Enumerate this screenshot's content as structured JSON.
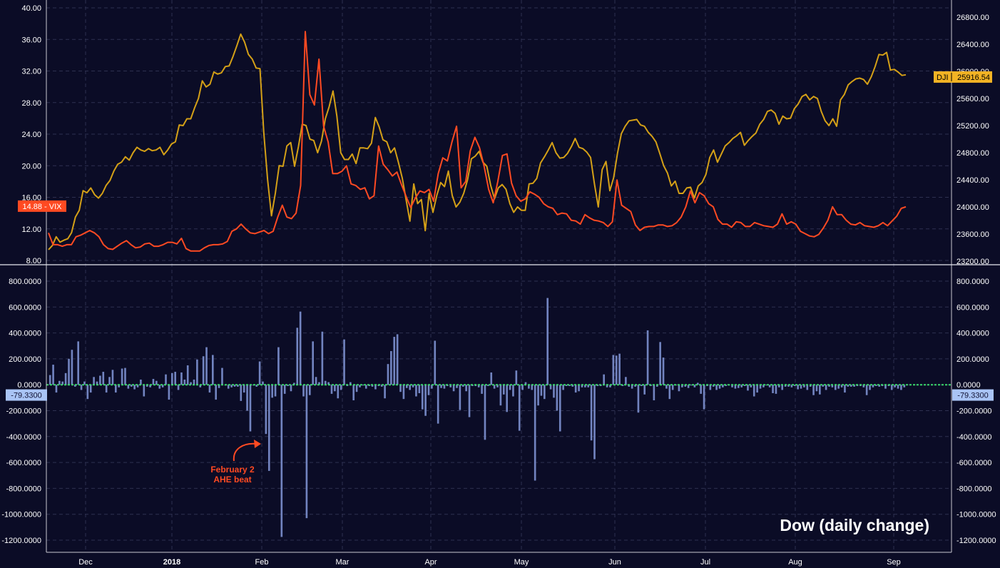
{
  "chart_data": [
    {
      "type": "line",
      "panel": "top",
      "title": "",
      "left_axis": {
        "ylim": [
          8,
          40
        ],
        "ticks": [
          "8.00",
          "12.00",
          "16.00",
          "20.00",
          "24.00",
          "28.00",
          "32.00",
          "36.00",
          "40.00"
        ]
      },
      "right_axis": {
        "ylim": [
          23150,
          26900
        ],
        "ticks": [
          "23200.00",
          "23600.00",
          "24000.00",
          "24400.00",
          "24800.00",
          "25200.00",
          "25600.00",
          "26000.00",
          "26400.00",
          "26800.00"
        ]
      },
      "x_labels": [
        "Dec",
        "2018",
        "Feb",
        "Mar",
        "Apr",
        "May",
        "Jun",
        "Jul",
        "Aug",
        "Sep"
      ],
      "grid": true,
      "series": [
        {
          "name": "VIX",
          "axis": "left",
          "color": "#ff4a22",
          "last_value": "14.88",
          "values": [
            11.5,
            10.0,
            10.0,
            9.8,
            10.0,
            10.0,
            11.0,
            11.2,
            11.5,
            11.8,
            11.5,
            11.0,
            10.0,
            9.5,
            9.4,
            9.8,
            10.2,
            10.5,
            10.0,
            9.6,
            9.7,
            10.1,
            10.2,
            9.8,
            9.8,
            10.0,
            10.3,
            10.3,
            10.1,
            10.8,
            9.5,
            9.2,
            9.2,
            9.2,
            9.6,
            9.9,
            10.0,
            10.0,
            10.1,
            10.4,
            11.7,
            12.0,
            12.6,
            12.0,
            11.5,
            11.4,
            11.6,
            11.8,
            11.4,
            11.7,
            13.5,
            15.0,
            13.5,
            13.3,
            14.0,
            17.5,
            37.0,
            29.0,
            27.7,
            33.5,
            25.0,
            23.0,
            19.0,
            19.0,
            19.3,
            20.0,
            17.7,
            17.5,
            17.0,
            17.2,
            15.8,
            16.2,
            22.5,
            20.2,
            19.5,
            18.7,
            19.2,
            17.6,
            16.1,
            14.7,
            15.9,
            16.8,
            16.6,
            17.0,
            15.5,
            19.0,
            21.0,
            20.6,
            23.0,
            25.0,
            17.2,
            18.0,
            21.9,
            23.6,
            22.3,
            20.0,
            17.0,
            15.3,
            18.0,
            21.3,
            21.5,
            17.8,
            16.2,
            15.5,
            15.8,
            16.7,
            16.4,
            16.0,
            15.2,
            14.8,
            14.6,
            13.8,
            14.0,
            13.9,
            13.1,
            13.0,
            12.6,
            13.8,
            13.4,
            13.1,
            13.0,
            12.8,
            12.3,
            12.9,
            18.2,
            15.0,
            14.6,
            14.2,
            12.5,
            11.8,
            12.2,
            12.3,
            12.3,
            12.5,
            12.5,
            12.3,
            12.4,
            12.8,
            13.5,
            14.8,
            16.8,
            15.3,
            16.6,
            16.2,
            15.2,
            14.8,
            13.2,
            12.6,
            12.6,
            12.2,
            12.9,
            12.8,
            12.3,
            12.3,
            12.8,
            12.6,
            12.4,
            12.3,
            12.2,
            12.6,
            13.9,
            12.6,
            12.9,
            12.6,
            11.7,
            11.4,
            11.1,
            11.0,
            11.3,
            12.1,
            13.1,
            14.8,
            13.8,
            13.8,
            13.1,
            12.6,
            12.5,
            12.8,
            12.4,
            12.3,
            12.2,
            12.4,
            12.8,
            12.4,
            13.0,
            13.6,
            14.6,
            14.8
          ]
        },
        {
          "name": "DJI",
          "axis": "right",
          "color": "#d4a017",
          "last_value": "25916.54",
          "values": [
            23370,
            23430,
            23560,
            23480,
            23510,
            23530,
            23620,
            23850,
            23950,
            24240,
            24210,
            24280,
            24180,
            24130,
            24200,
            24320,
            24390,
            24530,
            24630,
            24660,
            24740,
            24690,
            24800,
            24880,
            24840,
            24820,
            24860,
            24830,
            24840,
            24880,
            24770,
            24840,
            24930,
            24960,
            25210,
            25200,
            25300,
            25300,
            25460,
            25600,
            25860,
            25770,
            25810,
            25990,
            25960,
            25980,
            26070,
            26080,
            26220,
            26380,
            26550,
            26430,
            26250,
            26180,
            26050,
            26040,
            25100,
            24400,
            23870,
            24200,
            24610,
            24600,
            24900,
            24950,
            24600,
            24890,
            25220,
            25200,
            25000,
            24980,
            24800,
            24970,
            25300,
            25480,
            25710,
            25340,
            24800,
            24700,
            24700,
            24780,
            24640,
            24870,
            24870,
            24860,
            24940,
            25320,
            25180,
            24990,
            24960,
            24800,
            24870,
            24660,
            24430,
            24110,
            23790,
            24340,
            24050,
            24110,
            23650,
            24200,
            23920,
            24170,
            24360,
            24300,
            24530,
            24170,
            24000,
            24070,
            24200,
            24400,
            24710,
            24750,
            24820,
            24660,
            24600,
            24320,
            24120,
            24280,
            24330,
            24260,
            24050,
            23920,
            24000,
            23950,
            23950,
            24340,
            24350,
            24420,
            24650,
            24740,
            24840,
            24950,
            24800,
            24720,
            24730,
            24790,
            24890,
            25010,
            24880,
            24860,
            24810,
            24730,
            24340,
            24000,
            24550,
            24670,
            24240,
            24430,
            24790,
            25080,
            25190,
            25270,
            25280,
            25290,
            25210,
            25190,
            25100,
            25040,
            24960,
            24790,
            24610,
            24500,
            24310,
            24380,
            24200,
            24200,
            24280,
            24290,
            24130,
            24310,
            24360,
            24480,
            24730,
            24840,
            24660,
            24780,
            24900,
            24950,
            25010,
            25050,
            25100,
            24910,
            24980,
            25040,
            25090,
            25220,
            25290,
            25410,
            25430,
            25380,
            25220,
            25340,
            25300,
            25310,
            25450,
            25520,
            25630,
            25660,
            25580,
            25630,
            25600,
            25410,
            25270,
            25200,
            25300,
            25190,
            25580,
            25660,
            25800,
            25850,
            25890,
            25900,
            25880,
            25810,
            25920,
            26070,
            26250,
            26240,
            26280,
            26020,
            26030,
            25990,
            25940,
            25950
          ]
        }
      ]
    },
    {
      "type": "bar",
      "panel": "bottom",
      "title": "Dow (daily change)",
      "ylim": [
        -1250,
        850
      ],
      "ticks": [
        "-1200.0000",
        "-1000.0000",
        "-800.0000",
        "-600.0000",
        "-400.0000",
        "-200.0000",
        "0.0000",
        "200.0000",
        "400.0000",
        "600.0000",
        "800.0000"
      ],
      "color": "#7284c0",
      "zero_line_color": "#3ad86a",
      "last_value": "-79.3300",
      "values": [
        75,
        155,
        -60,
        30,
        25,
        90,
        200,
        270,
        -15,
        335,
        -40,
        25,
        -110,
        -60,
        60,
        25,
        70,
        100,
        -60,
        60,
        115,
        -60,
        -20,
        125,
        130,
        -30,
        -15,
        -35,
        -20,
        40,
        -90,
        -15,
        -20,
        45,
        30,
        -30,
        -20,
        80,
        -115,
        90,
        100,
        -40,
        95,
        40,
        150,
        20,
        40,
        195,
        -20,
        220,
        290,
        -60,
        230,
        -115,
        -25,
        130,
        -5,
        -30,
        -20,
        -15,
        -15,
        -125,
        -60,
        -200,
        -360,
        -5,
        -15,
        180,
        25,
        -380,
        -665,
        -100,
        -90,
        290,
        -1175,
        -70,
        -10,
        -50,
        15,
        440,
        565,
        -90,
        -1030,
        -80,
        335,
        60,
        20,
        410,
        30,
        20,
        -70,
        -50,
        -105,
        -40,
        350,
        -10,
        20,
        -120,
        -55,
        -20,
        -5,
        -30,
        -10,
        -15,
        -35,
        -10,
        -15,
        -105,
        160,
        260,
        370,
        390,
        -55,
        -110,
        -25,
        -40,
        -20,
        -90,
        -65,
        -190,
        -240,
        -80,
        -30,
        340,
        -300,
        -25,
        -30,
        -10,
        -20,
        -50,
        -25,
        -195,
        -15,
        -50,
        -250,
        -10,
        -10,
        -20,
        -70,
        -425,
        -10,
        95,
        -30,
        -20,
        -160,
        -75,
        -210,
        -40,
        -90,
        110,
        -355,
        -40,
        20,
        -30,
        -40,
        -740,
        -160,
        -85,
        -110,
        670,
        -35,
        -100,
        -200,
        -360,
        -40,
        -10,
        -10,
        -15,
        -60,
        -50,
        -20,
        -20,
        -20,
        -430,
        -575,
        -10,
        -10,
        80,
        -20,
        -20,
        230,
        225,
        240,
        -10,
        60,
        -15,
        -30,
        -15,
        -215,
        -10,
        -75,
        420,
        -10,
        -120,
        -15,
        330,
        210,
        -30,
        -110,
        -40,
        -5,
        -50,
        -20,
        -15,
        -25,
        -5,
        -20,
        15,
        -70,
        -190,
        -10,
        -40,
        -15,
        -40,
        -30,
        -20,
        -10,
        -5,
        -20,
        -30,
        -25,
        -20,
        -10,
        -45,
        -20,
        -90,
        -60,
        -30,
        -20,
        -5,
        -20,
        -65,
        -70,
        -20,
        -40,
        -15,
        -15,
        -20,
        -10,
        -35,
        -30,
        -20,
        -40,
        -15,
        -80,
        -50,
        -75,
        -15,
        -40,
        -15,
        -20,
        -40,
        -30,
        -20,
        -60,
        -15,
        -15,
        -15,
        -10,
        -10,
        -20,
        -80,
        -40,
        -20,
        -10,
        -15,
        -10,
        -30,
        -10,
        -40,
        -20,
        -30,
        -40,
        -20
      ]
    }
  ],
  "annotation": {
    "line1": "February 2",
    "line2": "AHE beat"
  },
  "tags": {
    "vix": "14.88 - VIX",
    "dji_name": "DJI",
    "dji_value": "25916.54",
    "dow_left": "-79.3300",
    "dow_right": "-79.3300"
  }
}
